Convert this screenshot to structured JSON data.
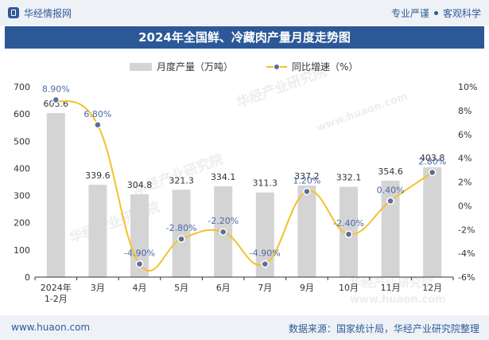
{
  "header": {
    "brand": "华经情报网",
    "tagline_left": "专业严谨",
    "tagline_right": "客观科学"
  },
  "title": "2024年全国鲜、冷藏肉产量月度走势图",
  "footer": {
    "website": "www.huaon.com",
    "source": "数据来源：国家统计局，华经产业研究院整理"
  },
  "watermark": {
    "name": "华经产业研究院",
    "url": "www.huaon.com"
  },
  "colors": {
    "bar": "#d4d4d4",
    "line": "#f5c02a",
    "marker_fill": "#5b6f96",
    "title_bg": "#2c5898"
  },
  "chart_data": {
    "type": "bar",
    "categories": [
      "2024年\n1-2月",
      "3月",
      "4月",
      "5月",
      "6月",
      "7月",
      "9月",
      "10月",
      "11月",
      "12月"
    ],
    "series": [
      {
        "name": "月度产量（万吨）",
        "type": "bar",
        "axis": "left",
        "values": [
          603.6,
          339.6,
          304.8,
          321.3,
          334.1,
          311.3,
          337.2,
          332.1,
          354.6,
          403.8
        ],
        "labels": [
          "603.6",
          "339.6",
          "304.8",
          "321.3",
          "334.1",
          "311.3",
          "337.2",
          "332.1",
          "354.6",
          "403.8"
        ]
      },
      {
        "name": "同比增速（%）",
        "type": "line",
        "axis": "right",
        "values": [
          8.9,
          6.8,
          -4.9,
          -2.8,
          -2.2,
          -4.9,
          1.2,
          -2.4,
          0.4,
          2.8
        ],
        "labels": [
          "8.90%",
          "6.80%",
          "-4.90%",
          "-2.80%",
          "-2.20%",
          "-4.90%",
          "1.20%",
          "-2.40%",
          "0.40%",
          "2.80%"
        ]
      }
    ],
    "y_left": {
      "min": 0,
      "max": 700,
      "ticks": [
        "0",
        "100",
        "200",
        "300",
        "400",
        "500",
        "600",
        "700"
      ]
    },
    "y_right": {
      "min": -6,
      "max": 10,
      "ticks": [
        "-6%",
        "-4%",
        "-2%",
        "0%",
        "2%",
        "4%",
        "6%",
        "8%",
        "10%"
      ]
    },
    "legend_position": "top-center",
    "grid": false
  }
}
